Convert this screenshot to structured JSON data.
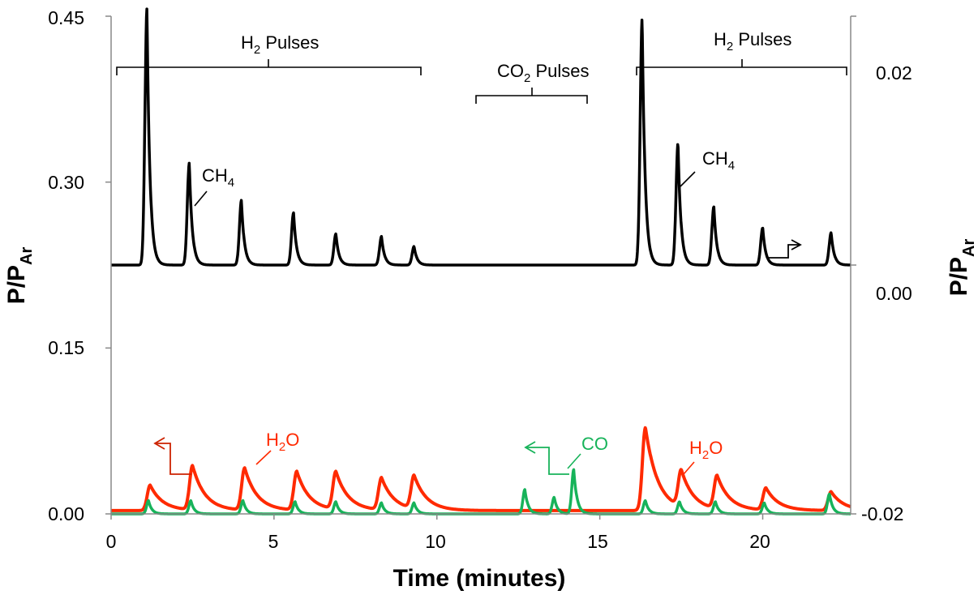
{
  "chart_data": {
    "type": "line",
    "xlabel": "Time (minutes)",
    "ylabel_left": "P/P",
    "ylabel_left_sub": "Ar",
    "ylabel_right": "P/P",
    "ylabel_right_sub": "Ar",
    "xlim": [
      0,
      22.7
    ],
    "ylim_left": [
      0,
      0.45
    ],
    "ylim_right": [
      -0.02,
      0.02
    ],
    "x_ticks": [
      "0",
      "5",
      "10",
      "15",
      "20"
    ],
    "y_left_ticks": [
      "0.00",
      "0.15",
      "0.30",
      "0.45"
    ],
    "y_right_ticks": [
      "-0.02",
      "0.00",
      "0.02"
    ],
    "grid": false,
    "legend": "none",
    "colors": {
      "h2o": "#ff2a00",
      "co": "#17b35a",
      "ch4": "#000000",
      "arrow_h2o": "#cc2200"
    },
    "series": [
      {
        "axis": "right",
        "color": "#000000",
        "baseline": 0.0,
        "peaks": [
          {
            "x": 1.1,
            "y": 0.0206
          },
          {
            "x": 2.4,
            "y": 0.0082
          },
          {
            "x": 4.0,
            "y": 0.0052
          },
          {
            "x": 5.6,
            "y": 0.0042
          },
          {
            "x": 6.9,
            "y": 0.0025
          },
          {
            "x": 8.3,
            "y": 0.0023
          },
          {
            "x": 9.3,
            "y": 0.0015
          },
          {
            "x": 16.3,
            "y": 0.0198
          },
          {
            "x": 17.4,
            "y": 0.0098
          },
          {
            "x": 18.5,
            "y": 0.0047
          },
          {
            "x": 20.0,
            "y": 0.003
          },
          {
            "x": 22.1,
            "y": 0.0026
          }
        ]
      },
      {
        "axis": "left",
        "name": "H2O",
        "color": "#ff2a00",
        "baseline": 0.003,
        "peaks": [
          {
            "x": 1.2,
            "y": 0.026
          },
          {
            "x": 2.5,
            "y": 0.043
          },
          {
            "x": 4.1,
            "y": 0.041
          },
          {
            "x": 5.7,
            "y": 0.038
          },
          {
            "x": 6.9,
            "y": 0.037
          },
          {
            "x": 8.3,
            "y": 0.032
          },
          {
            "x": 9.3,
            "y": 0.033
          },
          {
            "x": 16.4,
            "y": 0.078
          },
          {
            "x": 17.5,
            "y": 0.036
          },
          {
            "x": 18.6,
            "y": 0.033
          },
          {
            "x": 20.1,
            "y": 0.023
          },
          {
            "x": 22.1,
            "y": 0.02
          }
        ]
      },
      {
        "axis": "left",
        "name": "CO",
        "color": "#17b35a",
        "baseline": 0.0,
        "peaks": [
          {
            "x": 1.15,
            "y": 0.012
          },
          {
            "x": 2.45,
            "y": 0.012
          },
          {
            "x": 4.05,
            "y": 0.012
          },
          {
            "x": 5.65,
            "y": 0.011
          },
          {
            "x": 6.9,
            "y": 0.011
          },
          {
            "x": 8.3,
            "y": 0.01
          },
          {
            "x": 9.3,
            "y": 0.01
          },
          {
            "x": 12.7,
            "y": 0.022
          },
          {
            "x": 13.6,
            "y": 0.015
          },
          {
            "x": 14.2,
            "y": 0.04
          },
          {
            "x": 16.4,
            "y": 0.012
          },
          {
            "x": 17.45,
            "y": 0.011
          },
          {
            "x": 18.55,
            "y": 0.011
          },
          {
            "x": 20.05,
            "y": 0.01
          },
          {
            "x": 22.05,
            "y": 0.018
          }
        ]
      }
    ],
    "annotations": {
      "h2_pulses_1": {
        "main": "H",
        "sub": "2",
        "rest": " Pulses",
        "x_from": 0.1,
        "x_to": 9.6
      },
      "co2_pulses": {
        "main": "CO",
        "sub": "2",
        "rest": " Pulses",
        "x_from": 11.3,
        "x_to": 14.8
      },
      "h2_pulses_2": {
        "main": "H",
        "sub": "2",
        "rest": " Pulses",
        "x_from": 16.2,
        "x_to": 22.6
      },
      "ch4_1": {
        "main": "CH",
        "sub": "4"
      },
      "ch4_2": {
        "main": "CH",
        "sub": "4"
      },
      "h2o_1": {
        "main": "H",
        "sub": "2",
        "rest": "O"
      },
      "h2o_2": {
        "main": "H",
        "sub": "2",
        "rest": "O"
      },
      "co": {
        "main": "CO"
      }
    }
  }
}
